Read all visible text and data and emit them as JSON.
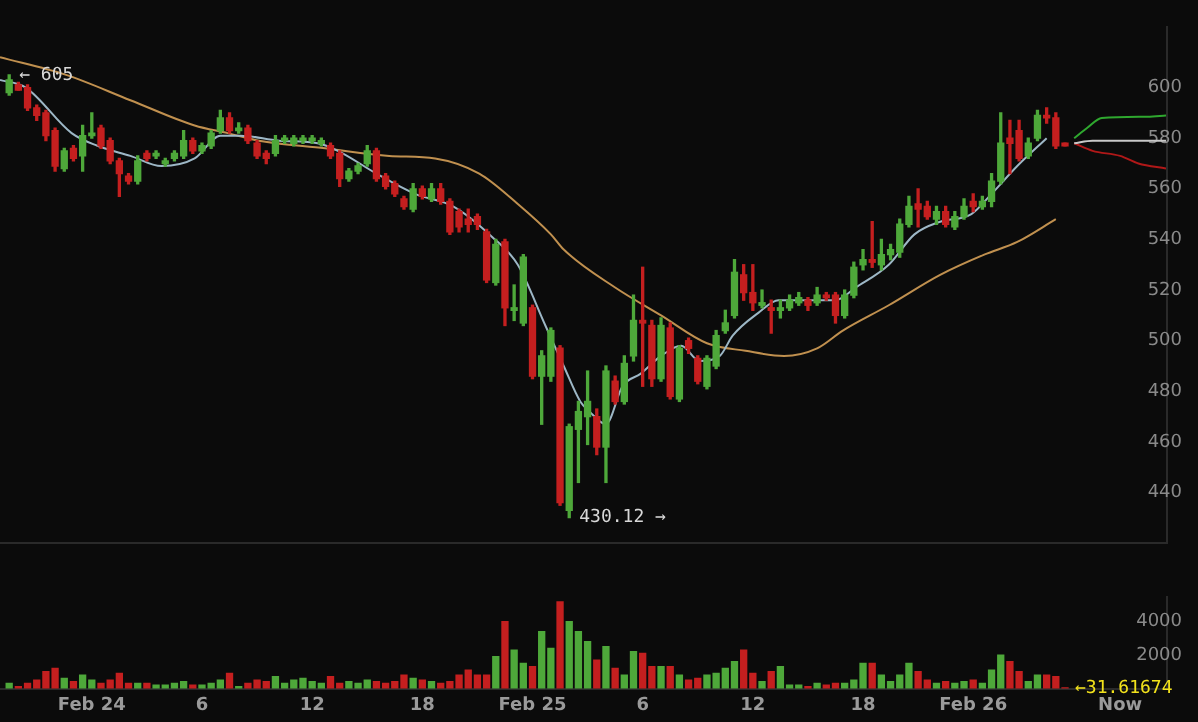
{
  "chart_data": [
    {
      "type": "candlestick",
      "xlim": [
        "--02-23T19:00",
        "--02-26T10:30"
      ],
      "ylim": [
        420,
        624
      ],
      "yticks": [
        440,
        460,
        480,
        500,
        520,
        540,
        560,
        580,
        600
      ],
      "tick_labels": "y",
      "x": [
        "--02-23T19:30",
        "--02-23T20:00",
        "--02-23T20:30",
        "--02-23T21:00",
        "--02-23T21:30",
        "--02-23T22:00",
        "--02-23T22:30",
        "--02-23T23:00",
        "--02-23T23:30",
        "--02-24T00:00",
        "--02-24T00:30",
        "--02-24T01:00",
        "--02-24T01:30",
        "--02-24T02:00",
        "--02-24T02:30",
        "--02-24T03:00",
        "--02-24T03:30",
        "--02-24T04:00",
        "--02-24T04:30",
        "--02-24T05:00",
        "--02-24T05:30",
        "--02-24T06:00",
        "--02-24T06:30",
        "--02-24T07:00",
        "--02-24T07:30",
        "--02-24T08:00",
        "--02-24T08:30",
        "--02-24T09:00",
        "--02-24T09:30",
        "--02-24T10:00",
        "--02-24T10:30",
        "--02-24T11:00",
        "--02-24T11:30",
        "--02-24T12:00",
        "--02-24T12:30",
        "--02-24T13:00",
        "--02-24T13:30",
        "--02-24T14:00",
        "--02-24T14:30",
        "--02-24T15:00",
        "--02-24T15:30",
        "--02-24T16:00",
        "--02-24T16:30",
        "--02-24T17:00",
        "--02-24T17:30",
        "--02-24T18:00",
        "--02-24T18:30",
        "--02-24T19:00",
        "--02-24T19:30",
        "--02-24T20:00",
        "--02-24T20:30",
        "--02-24T21:00",
        "--02-24T21:30",
        "--02-24T22:00",
        "--02-24T22:30",
        "--02-24T23:00",
        "--02-24T23:30",
        "--02-25T00:00",
        "--02-25T00:30",
        "--02-25T01:00",
        "--02-25T01:30",
        "--02-25T02:00",
        "--02-25T02:30",
        "--02-25T03:00",
        "--02-25T03:30",
        "--02-25T04:00",
        "--02-25T04:30",
        "--02-25T05:00",
        "--02-25T05:30",
        "--02-25T06:00",
        "--02-25T06:30",
        "--02-25T07:00",
        "--02-25T07:30",
        "--02-25T08:00",
        "--02-25T08:30",
        "--02-25T09:00",
        "--02-25T09:30",
        "--02-25T10:00",
        "--02-25T10:30",
        "--02-25T11:00",
        "--02-25T11:30",
        "--02-25T12:00",
        "--02-25T12:30",
        "--02-25T13:00",
        "--02-25T13:30",
        "--02-25T14:00",
        "--02-25T14:30",
        "--02-25T15:00",
        "--02-25T15:30",
        "--02-25T16:00",
        "--02-25T16:30",
        "--02-25T17:00",
        "--02-25T17:30",
        "--02-25T18:00",
        "--02-25T18:30",
        "--02-25T19:00",
        "--02-25T19:30",
        "--02-25T20:00",
        "--02-25T20:30",
        "--02-25T21:00",
        "--02-25T21:30",
        "--02-25T22:00",
        "--02-25T22:30",
        "--02-25T23:00",
        "--02-25T23:30",
        "--02-26T00:00",
        "--02-26T00:30",
        "--02-26T01:00",
        "--02-26T01:30",
        "--02-26T02:00",
        "--02-26T02:30",
        "--02-26T03:00",
        "--02-26T03:30",
        "--02-26T04:00",
        "--02-26T04:30",
        "--02-26T05:00"
      ],
      "ohlc": [
        [
          598,
          605,
          597,
          603
        ],
        [
          601,
          602,
          599,
          599
        ],
        [
          600,
          601,
          591,
          592
        ],
        [
          592,
          593,
          587,
          589
        ],
        [
          590,
          591,
          579,
          581
        ],
        [
          583,
          584,
          567,
          569
        ],
        [
          568,
          576,
          567,
          575
        ],
        [
          576,
          577,
          571,
          572
        ],
        [
          573,
          585,
          567,
          581
        ],
        [
          581,
          590,
          580,
          582
        ],
        [
          584,
          585,
          576,
          577
        ],
        [
          579,
          580,
          570,
          571
        ],
        [
          571,
          572,
          557,
          566
        ],
        [
          565,
          566,
          562,
          563
        ],
        [
          563,
          573,
          562,
          571
        ],
        [
          574,
          575,
          571,
          572
        ],
        [
          573,
          575,
          572,
          574
        ],
        [
          570,
          572,
          569,
          571
        ],
        [
          572,
          575,
          571,
          574
        ],
        [
          573,
          583,
          572,
          579
        ],
        [
          579,
          580,
          574,
          575
        ],
        [
          575,
          578,
          574,
          577
        ],
        [
          577,
          583,
          576,
          582
        ],
        [
          583,
          591,
          582,
          588
        ],
        [
          588,
          590,
          582,
          583
        ],
        [
          583,
          586,
          582,
          584
        ],
        [
          584,
          585,
          578,
          579
        ],
        [
          578,
          579,
          572,
          573
        ],
        [
          574,
          575,
          570,
          572
        ],
        [
          574,
          581,
          573,
          579
        ],
        [
          579,
          581,
          578,
          580
        ],
        [
          578,
          581,
          577,
          580
        ],
        [
          579,
          581,
          578,
          580
        ],
        [
          579,
          581,
          578,
          580
        ],
        [
          578,
          580,
          577,
          579
        ],
        [
          577,
          578,
          572,
          573
        ],
        [
          574,
          575,
          561,
          564
        ],
        [
          564,
          568,
          563,
          567
        ],
        [
          567,
          570,
          566,
          569
        ],
        [
          570,
          577,
          569,
          575
        ],
        [
          575,
          576,
          563,
          564
        ],
        [
          565,
          566,
          560,
          561
        ],
        [
          562,
          563,
          557,
          558
        ],
        [
          556,
          557,
          552,
          553
        ],
        [
          552,
          562,
          551,
          560
        ],
        [
          560,
          561,
          556,
          557
        ],
        [
          556,
          562,
          555,
          560
        ],
        [
          560,
          562,
          554,
          555
        ],
        [
          555,
          556,
          542,
          543
        ],
        [
          551,
          552,
          543,
          545
        ],
        [
          548,
          552,
          543,
          546
        ],
        [
          549,
          550,
          544,
          546
        ],
        [
          543,
          544,
          523,
          524
        ],
        [
          523,
          540,
          522,
          538
        ],
        [
          539,
          540,
          506,
          513
        ],
        [
          512,
          522,
          508,
          513
        ],
        [
          507,
          534,
          506,
          533
        ],
        [
          513,
          514,
          485,
          486
        ],
        [
          486,
          496,
          467,
          494
        ],
        [
          486,
          505,
          484,
          504
        ],
        [
          497,
          498,
          435,
          436
        ],
        [
          433,
          467,
          430.12,
          466
        ],
        [
          465,
          476,
          444,
          472
        ],
        [
          470,
          488,
          459,
          476
        ],
        [
          470,
          473,
          455,
          458
        ],
        [
          458,
          490,
          444,
          488
        ],
        [
          484,
          486,
          475,
          476
        ],
        [
          476,
          494,
          475,
          491
        ],
        [
          494,
          518,
          492,
          508
        ],
        [
          508,
          529,
          482,
          507
        ],
        [
          506,
          508,
          482,
          485
        ],
        [
          485,
          509,
          484,
          506
        ],
        [
          505,
          507,
          477,
          478
        ],
        [
          477,
          498,
          476,
          497
        ],
        [
          500,
          501,
          495,
          497
        ],
        [
          493,
          494,
          483,
          484
        ],
        [
          482,
          494,
          481,
          493
        ],
        [
          490,
          504,
          489,
          502
        ],
        [
          504,
          512,
          503,
          507
        ],
        [
          510,
          532,
          509,
          527
        ],
        [
          526,
          530,
          516,
          519
        ],
        [
          519,
          530,
          512,
          515
        ],
        [
          514,
          520,
          513,
          515
        ],
        [
          513,
          516,
          503,
          512
        ],
        [
          512,
          516,
          509,
          513
        ],
        [
          513,
          518,
          512,
          516
        ],
        [
          515,
          519,
          514,
          517
        ],
        [
          516,
          517,
          512,
          514
        ],
        [
          515,
          521,
          514,
          518
        ],
        [
          518,
          519,
          516,
          517
        ],
        [
          518,
          519,
          507,
          510
        ],
        [
          510,
          520,
          509,
          518
        ],
        [
          518,
          531,
          517,
          529
        ],
        [
          530,
          536,
          528,
          532
        ],
        [
          532,
          547,
          529,
          531
        ],
        [
          530,
          540,
          528,
          534
        ],
        [
          534,
          538,
          532,
          536
        ],
        [
          535,
          548,
          533,
          546
        ],
        [
          546,
          557,
          545,
          553
        ],
        [
          554,
          560,
          545,
          552
        ],
        [
          553,
          555,
          548,
          549
        ],
        [
          548,
          553,
          546,
          551
        ],
        [
          551,
          553,
          545,
          546
        ],
        [
          545,
          551,
          544,
          549
        ],
        [
          549,
          556,
          548,
          553
        ],
        [
          555,
          558,
          551,
          553
        ],
        [
          553,
          557,
          552,
          555
        ],
        [
          555,
          566,
          553,
          563
        ],
        [
          563,
          590,
          562,
          578
        ],
        [
          580,
          587,
          566,
          578
        ],
        [
          583,
          587,
          571,
          572
        ],
        [
          573,
          580,
          572,
          578
        ],
        [
          580,
          591,
          579,
          589
        ],
        [
          589,
          592,
          586,
          588
        ],
        [
          588,
          590,
          576,
          577
        ],
        [
          578,
          578,
          577,
          577
        ]
      ],
      "colors": [
        "#4ea83a",
        "#c41f1f",
        "#c41f1f",
        "#c41f1f",
        "#c41f1f",
        "#c41f1f",
        "#4ea83a",
        "#c41f1f",
        "#4ea83a",
        "#4ea83a",
        "#c41f1f",
        "#c41f1f",
        "#c41f1f",
        "#c41f1f",
        "#4ea83a",
        "#c41f1f",
        "#4ea83a",
        "#4ea83a",
        "#4ea83a",
        "#4ea83a",
        "#c41f1f",
        "#4ea83a",
        "#4ea83a",
        "#4ea83a",
        "#c41f1f",
        "#4ea83a",
        "#c41f1f",
        "#c41f1f",
        "#c41f1f",
        "#4ea83a",
        "#4ea83a",
        "#4ea83a",
        "#4ea83a",
        "#4ea83a",
        "#4ea83a",
        "#c41f1f",
        "#c41f1f",
        "#4ea83a",
        "#4ea83a",
        "#4ea83a",
        "#c41f1f",
        "#c41f1f",
        "#c41f1f",
        "#c41f1f",
        "#4ea83a",
        "#c41f1f",
        "#4ea83a",
        "#c41f1f",
        "#c41f1f",
        "#c41f1f",
        "#c41f1f",
        "#c41f1f",
        "#c41f1f",
        "#4ea83a",
        "#c41f1f",
        "#4ea83a",
        "#4ea83a",
        "#c41f1f",
        "#4ea83a",
        "#4ea83a",
        "#c41f1f",
        "#4ea83a",
        "#4ea83a",
        "#4ea83a",
        "#c41f1f",
        "#4ea83a",
        "#c41f1f",
        "#4ea83a",
        "#4ea83a",
        "#c41f1f",
        "#c41f1f",
        "#4ea83a",
        "#c41f1f",
        "#4ea83a",
        "#c41f1f",
        "#c41f1f",
        "#4ea83a",
        "#4ea83a",
        "#4ea83a",
        "#4ea83a",
        "#c41f1f",
        "#c41f1f",
        "#4ea83a",
        "#c41f1f",
        "#4ea83a",
        "#4ea83a",
        "#4ea83a",
        "#c41f1f",
        "#4ea83a",
        "#c41f1f",
        "#c41f1f",
        "#4ea83a",
        "#4ea83a",
        "#4ea83a",
        "#c41f1f",
        "#4ea83a",
        "#4ea83a",
        "#4ea83a",
        "#4ea83a",
        "#c41f1f",
        "#c41f1f",
        "#4ea83a",
        "#c41f1f",
        "#4ea83a",
        "#4ea83a",
        "#c41f1f",
        "#4ea83a",
        "#4ea83a",
        "#4ea83a",
        "#c41f1f",
        "#c41f1f",
        "#4ea83a",
        "#4ea83a",
        "#c41f1f",
        "#c41f1f",
        "#c41f1f"
      ],
      "series": [
        {
          "type": "line",
          "color": "#9db7c6",
          "x": [
            "--02-23T19:00",
            "--02-23T20:24",
            "--02-23T22:54",
            "--02-24T00:18",
            "--02-24T02:06",
            "--02-24T03:48",
            "--02-24T05:36",
            "--02-24T07:00",
            "--02-24T08:06",
            "--02-24T10:12",
            "--02-24T12:18",
            "--02-24T13:24",
            "--02-24T15:30",
            "--02-24T17:36",
            "--02-24T19:42",
            "--02-24T21:48",
            "--02-24T23:12",
            "--02-25T00:42",
            "--02-25T01:42",
            "--02-25T02:36",
            "--02-25T03:06",
            "--02-25T04:00",
            "--02-25T04:54",
            "--02-25T05:54",
            "--02-25T07:00",
            "--02-25T08:06",
            "--02-25T09:06",
            "--02-25T10:12",
            "--02-25T10:54",
            "--02-25T12:18",
            "--02-25T13:24",
            "--02-25T15:06",
            "--02-25T16:30",
            "--02-25T17:36",
            "--02-25T19:24",
            "--02-25T20:48",
            "--02-25T22:12",
            "--02-25T23:54",
            "--02-26T01:00",
            "--02-26T02:24",
            "--02-26T04:00"
          ],
          "values": [
            603,
            600,
            582,
            577,
            573,
            569,
            572,
            581,
            581,
            579,
            578,
            575,
            566,
            558,
            553,
            541,
            530,
            506,
            490,
            476,
            472,
            467,
            482,
            487,
            494,
            498,
            492,
            494,
            502,
            511,
            516,
            516,
            516,
            521,
            530,
            542,
            547,
            550,
            558,
            569,
            580
          ]
        },
        {
          "type": "line",
          "color": "#c0904f",
          "x": [
            "--02-23T19:00",
            "--02-23T22:36",
            "--02-24T02:06",
            "--02-24T05:36",
            "--02-24T07:24",
            "--02-24T09:06",
            "--02-24T12:42",
            "--02-24T16:12",
            "--02-24T18:42",
            "--02-24T21:06",
            "--02-24T23:12",
            "--02-25T01:00",
            "--02-25T01:42",
            "--02-25T04:30",
            "--02-25T07:00",
            "--02-25T09:30",
            "--02-25T11:36",
            "--02-25T13:42",
            "--02-25T15:30",
            "--02-25T16:54",
            "--02-25T19:24",
            "--02-25T22:12",
            "--02-26T00:36",
            "--02-26T02:24",
            "--02-26T04:30"
          ],
          "values": [
            612,
            605,
            595,
            585,
            582,
            579,
            576,
            573,
            572,
            566,
            554,
            542,
            536,
            521,
            510,
            499,
            496,
            494,
            497,
            504,
            514,
            526,
            534,
            539,
            548
          ]
        },
        {
          "type": "line",
          "color": "#c8c8c8",
          "x": [
            "--02-26T05:30",
            "--02-26T06:30",
            "--02-26T10:30"
          ],
          "values": [
            578,
            579,
            579
          ]
        },
        {
          "type": "line",
          "color": "#2fa82f",
          "x": [
            "--02-26T05:30",
            "--02-26T06:12",
            "--02-26T07:00",
            "--02-26T09:30",
            "--02-26T10:30"
          ],
          "values": [
            580,
            584,
            588,
            588.5,
            589
          ]
        },
        {
          "type": "line",
          "color": "#b01818",
          "x": [
            "--02-26T05:30",
            "--02-26T06:30",
            "--02-26T08:00",
            "--02-26T09:00",
            "--02-26T10:30"
          ],
          "values": [
            578,
            575,
            573,
            570,
            568
          ]
        }
      ],
      "annotations": [
        {
          "text": "← 605",
          "x": "--02-23T19:30",
          "y": 605
        },
        {
          "text": "430.12 →",
          "x": "--02-25T02:00",
          "y": 430.12
        }
      ]
    },
    {
      "type": "bar",
      "xlim": [
        "--02-23T19:00",
        "--02-26T10:30"
      ],
      "ylim": [
        0,
        5500
      ],
      "yticks": [
        2000,
        4000
      ],
      "xticks": [
        {
          "value": "--02-24T00:00",
          "label": "Feb 24"
        },
        {
          "value": "--02-24T06:00",
          "label": "6"
        },
        {
          "value": "--02-24T12:00",
          "label": "12"
        },
        {
          "value": "--02-24T18:00",
          "label": "18"
        },
        {
          "value": "--02-25T00:00",
          "label": "Feb 25"
        },
        {
          "value": "--02-25T06:00",
          "label": "6"
        },
        {
          "value": "--02-25T12:00",
          "label": "12"
        },
        {
          "value": "--02-25T18:00",
          "label": "18"
        },
        {
          "value": "--02-26T00:00",
          "label": "Feb 26"
        },
        {
          "value": "--02-26T08:00",
          "label": "Now"
        }
      ],
      "x": [
        "--02-23T19:30",
        "--02-23T20:00",
        "--02-23T20:30",
        "--02-23T21:00",
        "--02-23T21:30",
        "--02-23T22:00",
        "--02-23T22:30",
        "--02-23T23:00",
        "--02-23T23:30",
        "--02-24T00:00",
        "--02-24T00:30",
        "--02-24T01:00",
        "--02-24T01:30",
        "--02-24T02:00",
        "--02-24T02:30",
        "--02-24T03:00",
        "--02-24T03:30",
        "--02-24T04:00",
        "--02-24T04:30",
        "--02-24T05:00",
        "--02-24T05:30",
        "--02-24T06:00",
        "--02-24T06:30",
        "--02-24T07:00",
        "--02-24T07:30",
        "--02-24T08:00",
        "--02-24T08:30",
        "--02-24T09:00",
        "--02-24T09:30",
        "--02-24T10:00",
        "--02-24T10:30",
        "--02-24T11:00",
        "--02-24T11:30",
        "--02-24T12:00",
        "--02-24T12:30",
        "--02-24T13:00",
        "--02-24T13:30",
        "--02-24T14:00",
        "--02-24T14:30",
        "--02-24T15:00",
        "--02-24T15:30",
        "--02-24T16:00",
        "--02-24T16:30",
        "--02-24T17:00",
        "--02-24T17:30",
        "--02-24T18:00",
        "--02-24T18:30",
        "--02-24T19:00",
        "--02-24T19:30",
        "--02-24T20:00",
        "--02-24T20:30",
        "--02-24T21:00",
        "--02-24T21:30",
        "--02-24T22:00",
        "--02-24T22:30",
        "--02-24T23:00",
        "--02-24T23:30",
        "--02-25T00:00",
        "--02-25T00:30",
        "--02-25T01:00",
        "--02-25T01:30",
        "--02-25T02:00",
        "--02-25T02:30",
        "--02-25T03:00",
        "--02-25T03:30",
        "--02-25T04:00",
        "--02-25T04:30",
        "--02-25T05:00",
        "--02-25T05:30",
        "--02-25T06:00",
        "--02-25T06:30",
        "--02-25T07:00",
        "--02-25T07:30",
        "--02-25T08:00",
        "--02-25T08:30",
        "--02-25T09:00",
        "--02-25T09:30",
        "--02-25T10:00",
        "--02-25T10:30",
        "--02-25T11:00",
        "--02-25T11:30",
        "--02-25T12:00",
        "--02-25T12:30",
        "--02-25T13:00",
        "--02-25T13:30",
        "--02-25T14:00",
        "--02-25T14:30",
        "--02-25T15:00",
        "--02-25T15:30",
        "--02-25T16:00",
        "--02-25T16:30",
        "--02-25T17:00",
        "--02-25T17:30",
        "--02-25T18:00",
        "--02-25T18:30",
        "--02-25T19:00",
        "--02-25T19:30",
        "--02-25T20:00",
        "--02-25T20:30",
        "--02-25T21:00",
        "--02-25T21:30",
        "--02-25T22:00",
        "--02-25T22:30",
        "--02-25T23:00",
        "--02-25T23:30",
        "--02-26T00:00",
        "--02-26T00:30",
        "--02-26T01:00",
        "--02-26T01:30",
        "--02-26T02:00",
        "--02-26T02:30",
        "--02-26T03:00",
        "--02-26T03:30",
        "--02-26T04:00",
        "--02-26T04:30",
        "--02-26T05:00"
      ],
      "values": [
        300,
        100,
        300,
        500,
        1000,
        1200,
        600,
        400,
        800,
        500,
        300,
        500,
        900,
        300,
        300,
        300,
        200,
        200,
        300,
        400,
        200,
        200,
        300,
        500,
        900,
        100,
        300,
        500,
        400,
        700,
        300,
        500,
        600,
        400,
        300,
        700,
        300,
        400,
        300,
        500,
        400,
        300,
        400,
        800,
        600,
        500,
        400,
        300,
        400,
        800,
        1100,
        800,
        800,
        1900,
        4000,
        2300,
        1500,
        1300,
        3400,
        2400,
        5200,
        4000,
        3400,
        2800,
        1700,
        2500,
        1200,
        800,
        2200,
        2100,
        1300,
        1300,
        1300,
        800,
        500,
        600,
        800,
        900,
        1200,
        1600,
        2300,
        900,
        400,
        1000,
        1300,
        200,
        200,
        100,
        300,
        200,
        300,
        300,
        500,
        1500,
        1500,
        800,
        400,
        800,
        1500,
        1000,
        500,
        300,
        400,
        300,
        400,
        500,
        300,
        1100,
        2000,
        1600,
        1000,
        400,
        800,
        800,
        700,
        31.61674
      ],
      "colors": [
        "#4ea83a",
        "#c41f1f",
        "#c41f1f",
        "#c41f1f",
        "#c41f1f",
        "#c41f1f",
        "#4ea83a",
        "#c41f1f",
        "#4ea83a",
        "#4ea83a",
        "#c41f1f",
        "#c41f1f",
        "#c41f1f",
        "#c41f1f",
        "#4ea83a",
        "#c41f1f",
        "#4ea83a",
        "#4ea83a",
        "#4ea83a",
        "#4ea83a",
        "#c41f1f",
        "#4ea83a",
        "#4ea83a",
        "#4ea83a",
        "#c41f1f",
        "#4ea83a",
        "#c41f1f",
        "#c41f1f",
        "#c41f1f",
        "#4ea83a",
        "#4ea83a",
        "#4ea83a",
        "#4ea83a",
        "#4ea83a",
        "#4ea83a",
        "#c41f1f",
        "#c41f1f",
        "#4ea83a",
        "#4ea83a",
        "#4ea83a",
        "#c41f1f",
        "#c41f1f",
        "#c41f1f",
        "#c41f1f",
        "#4ea83a",
        "#c41f1f",
        "#4ea83a",
        "#c41f1f",
        "#c41f1f",
        "#c41f1f",
        "#c41f1f",
        "#c41f1f",
        "#c41f1f",
        "#4ea83a",
        "#c41f1f",
        "#4ea83a",
        "#4ea83a",
        "#c41f1f",
        "#4ea83a",
        "#4ea83a",
        "#c41f1f",
        "#4ea83a",
        "#4ea83a",
        "#4ea83a",
        "#c41f1f",
        "#4ea83a",
        "#c41f1f",
        "#4ea83a",
        "#4ea83a",
        "#c41f1f",
        "#c41f1f",
        "#4ea83a",
        "#c41f1f",
        "#4ea83a",
        "#c41f1f",
        "#c41f1f",
        "#4ea83a",
        "#4ea83a",
        "#4ea83a",
        "#4ea83a",
        "#c41f1f",
        "#c41f1f",
        "#4ea83a",
        "#c41f1f",
        "#4ea83a",
        "#4ea83a",
        "#4ea83a",
        "#c41f1f",
        "#4ea83a",
        "#c41f1f",
        "#c41f1f",
        "#4ea83a",
        "#4ea83a",
        "#4ea83a",
        "#c41f1f",
        "#4ea83a",
        "#4ea83a",
        "#4ea83a",
        "#4ea83a",
        "#c41f1f",
        "#c41f1f",
        "#4ea83a",
        "#c41f1f",
        "#4ea83a",
        "#4ea83a",
        "#c41f1f",
        "#4ea83a",
        "#4ea83a",
        "#4ea83a",
        "#c41f1f",
        "#c41f1f",
        "#4ea83a",
        "#4ea83a",
        "#c41f1f",
        "#c41f1f",
        "#c41f1f"
      ],
      "annotations": [
        {
          "text": "←31.61674",
          "x": "--02-26T05:00",
          "y": 31.61674
        }
      ]
    }
  ]
}
